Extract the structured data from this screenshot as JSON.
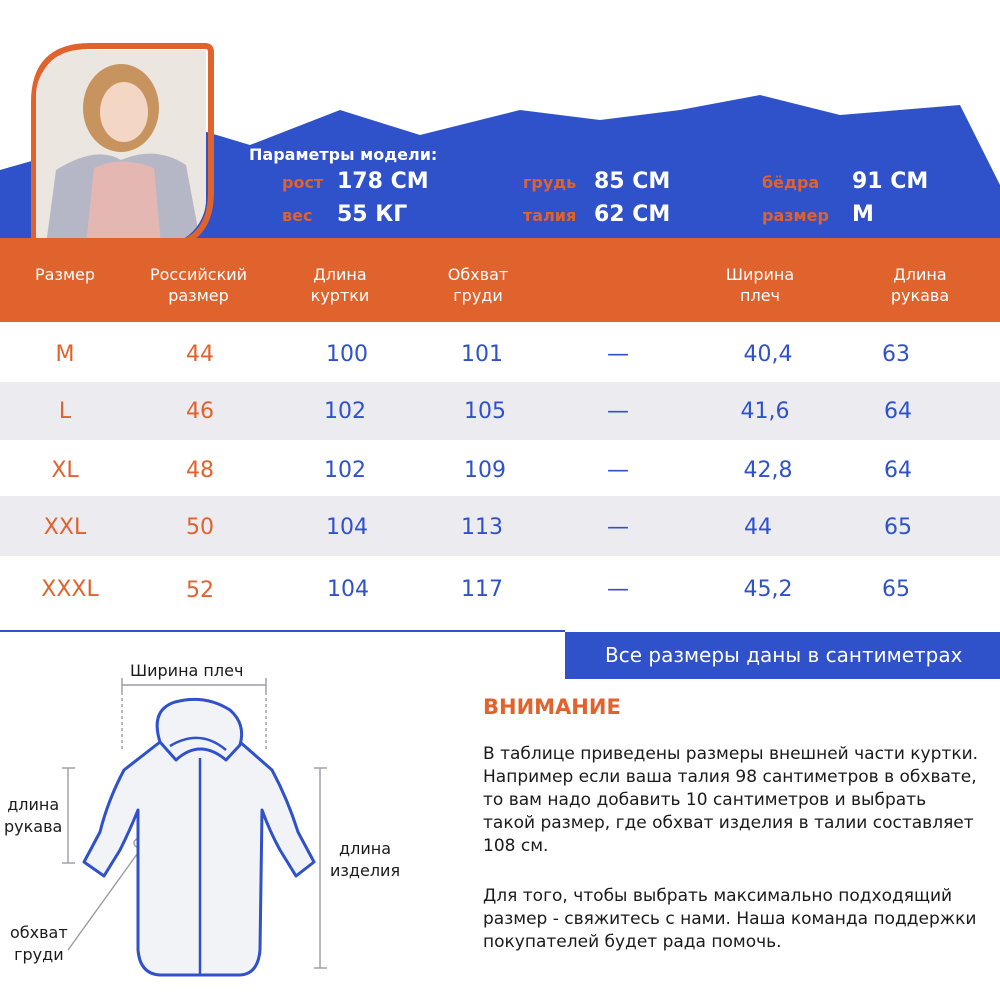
{
  "colors": {
    "accent_blue": "#2f51c9",
    "accent_orange": "#e0622c",
    "row_alt": "#ececf0"
  },
  "model": {
    "title": "Параметры модели:",
    "params": [
      {
        "label": "рост",
        "value": "178 СМ"
      },
      {
        "label": "вес",
        "value": "55 КГ"
      },
      {
        "label": "грудь",
        "value": "85 СМ"
      },
      {
        "label": "талия",
        "value": "62 СМ"
      },
      {
        "label": "бёдра",
        "value": "91 СМ"
      },
      {
        "label": "размер",
        "value": "M"
      }
    ]
  },
  "table": {
    "headers": [
      "Размер",
      "Российский\nразмер",
      "Длина\nкуртки",
      "Обхват\nгруди",
      "",
      "Ширина\nплеч",
      "Длина\nрукава"
    ],
    "rows": [
      [
        "M",
        "44",
        "100",
        "101",
        "—",
        "40,4",
        "63"
      ],
      [
        "L",
        "46",
        "102",
        "105",
        "—",
        "41,6",
        "64"
      ],
      [
        "XL",
        "48",
        "102",
        "109",
        "—",
        "42,8",
        "64"
      ],
      [
        "XXL",
        "50",
        "104",
        "113",
        "—",
        "44",
        "65"
      ],
      [
        "XXXL",
        "52",
        "104",
        "117",
        "—",
        "45,2",
        "65"
      ]
    ]
  },
  "note": "Все размеры даны в сантиметрах",
  "diagram": {
    "shoulder_width": "Ширина плеч",
    "sleeve_length": "длина\nрукава",
    "chest_girth": "обхват\nгруди",
    "item_length": "длина\nизделия"
  },
  "attention": {
    "title": "ВНИМАНИЕ",
    "paragraph1": "В таблице приведены размеры внешней части куртки. Например если ваша талия 98 сантиметров в обхвате, то вам надо добавить 10 сантиметров и выбрать такой размер, где обхват изделия в талии составляет 108 см.",
    "paragraph2": "Для того, чтобы выбрать максимально подходящий размер - свяжитесь с нами. Наша команда поддержки покупателей будет рада помочь."
  }
}
